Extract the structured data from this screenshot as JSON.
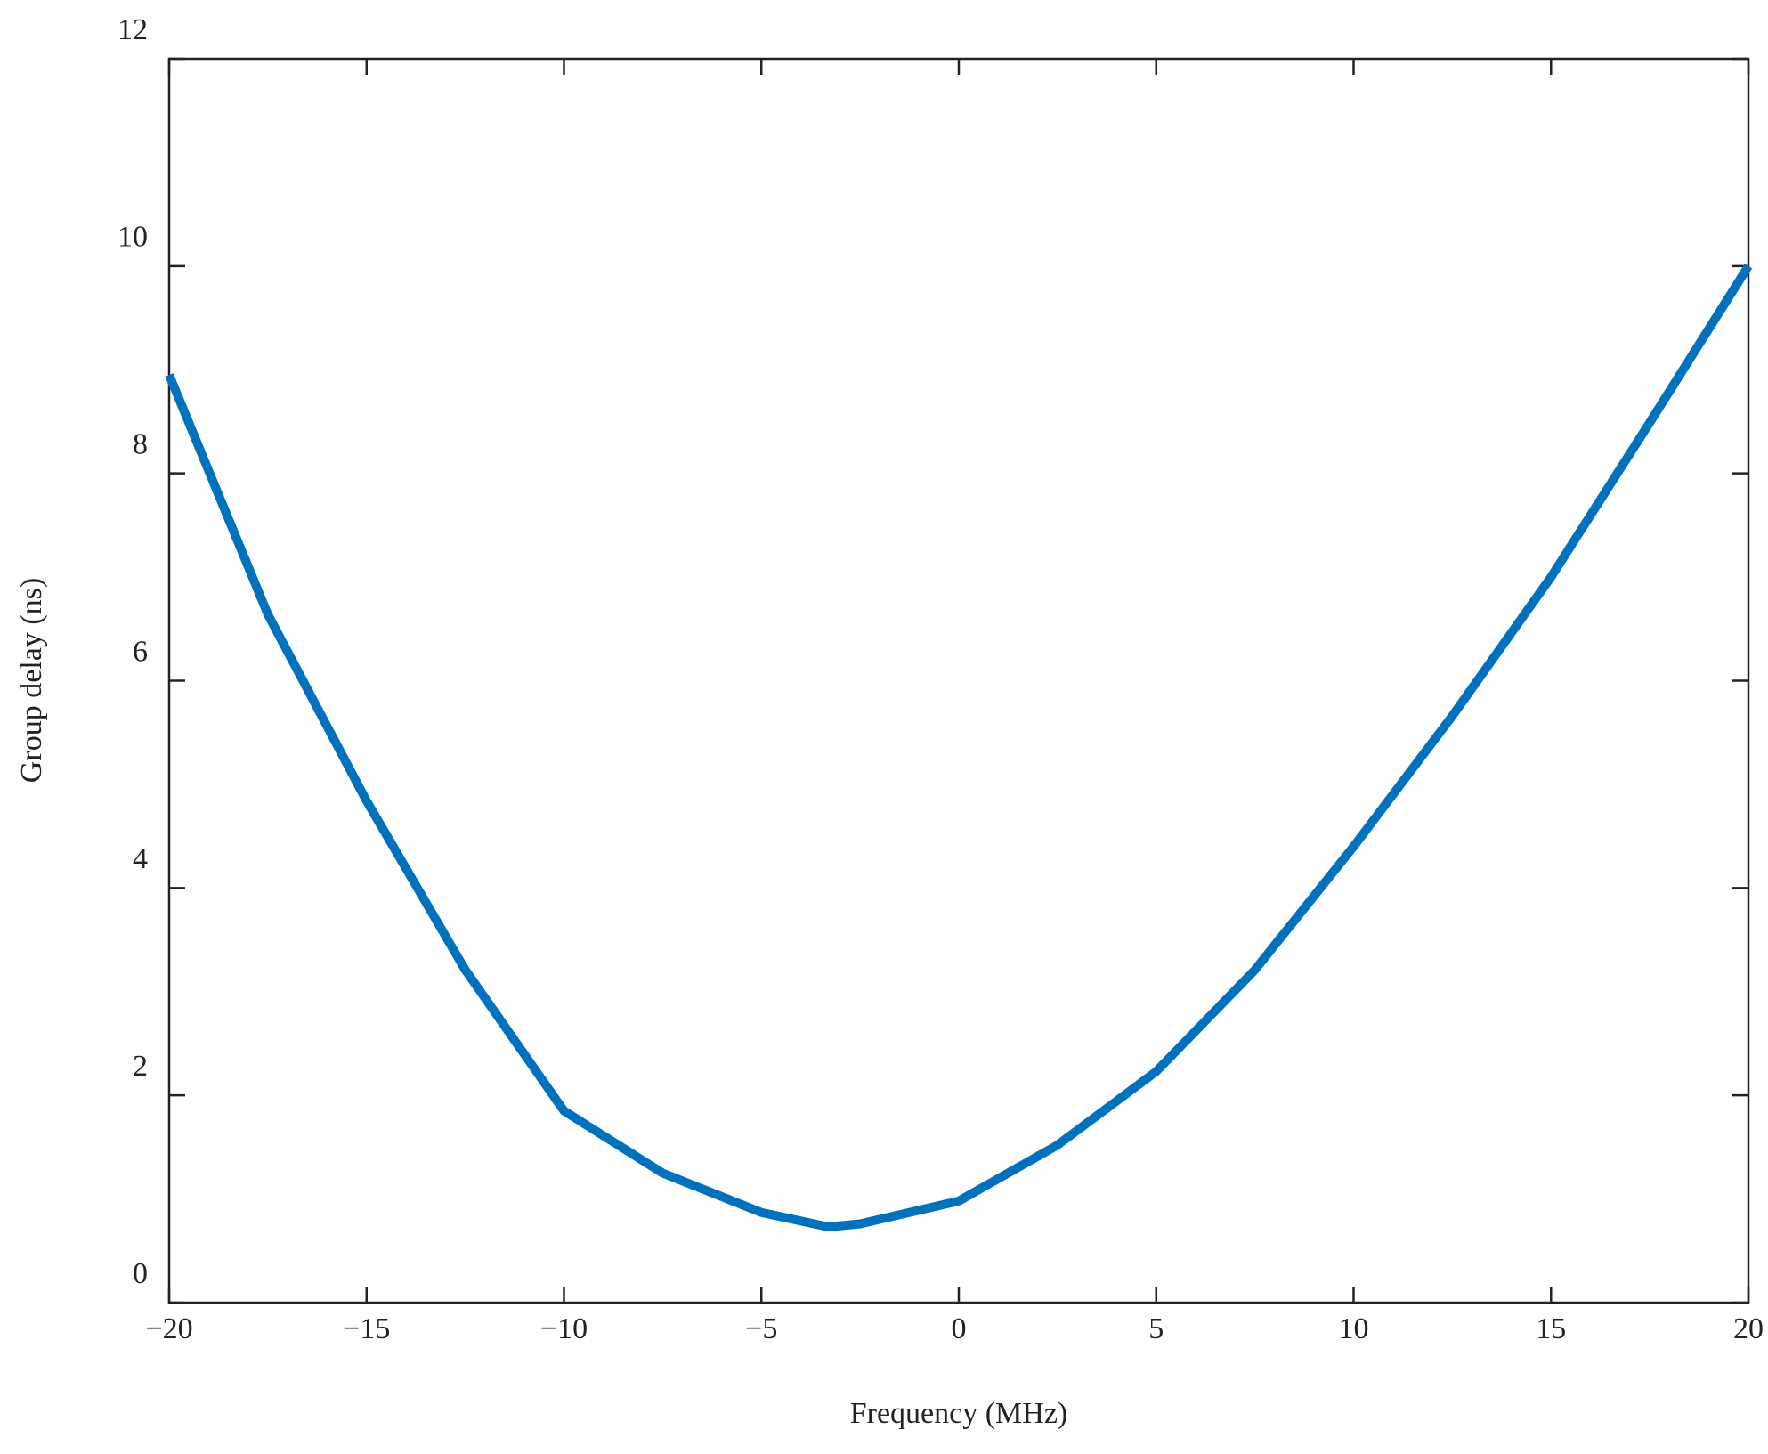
{
  "chart_data": {
    "type": "line",
    "x_label": "Frequency (MHz)",
    "y_label": "Group delay (ns)",
    "x": [
      -20,
      -17.5,
      -15,
      -12.5,
      -10,
      -7.5,
      -5,
      -3.3,
      -2.5,
      0,
      2.5,
      5,
      7.5,
      10,
      12.5,
      15,
      17.5,
      20
    ],
    "series": [
      {
        "color": "#0072bd",
        "values": [
          8.95,
          6.64,
          4.84,
          3.21,
          1.85,
          1.25,
          0.87,
          0.73,
          0.76,
          0.98,
          1.52,
          2.23,
          3.21,
          4.4,
          5.66,
          7.0,
          8.49,
          10.0
        ]
      }
    ],
    "xlim": [
      -20,
      20
    ],
    "xticks": [
      {
        "value": -20,
        "label": "−20"
      },
      {
        "value": -15,
        "label": "−15"
      },
      {
        "value": -10,
        "label": "−10"
      },
      {
        "value": -5,
        "label": "−5"
      },
      0,
      5,
      10,
      15,
      20
    ],
    "ylim": [
      0,
      12
    ],
    "yticks": [
      0,
      2,
      4,
      6,
      8,
      10,
      12
    ],
    "grid": false
  }
}
